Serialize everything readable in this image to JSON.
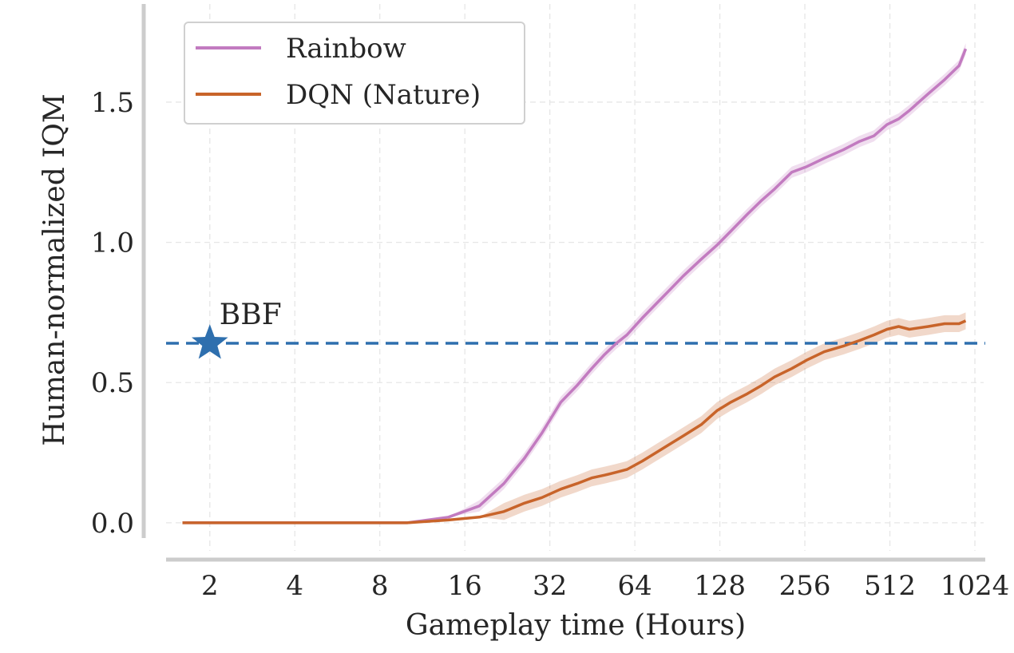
{
  "chart_data": {
    "type": "line",
    "title": "",
    "xlabel": "Gameplay time (Hours)",
    "ylabel": "Human-normalized IQM",
    "x_scale": "log2",
    "x_ticks": [
      2,
      4,
      8,
      16,
      32,
      64,
      128,
      256,
      512,
      1024
    ],
    "x_tick_labels": [
      "2",
      "4",
      "8",
      "16",
      "32",
      "64",
      "128",
      "256",
      "512",
      "1024"
    ],
    "y_ticks": [
      0.0,
      0.5,
      1.0,
      1.5
    ],
    "y_tick_labels": [
      "0.0",
      "0.5",
      "1.0",
      "1.5"
    ],
    "xlim": [
      1.4,
      1100
    ],
    "ylim": [
      -0.1,
      1.85
    ],
    "grid": true,
    "legend_position": "top-left",
    "series": [
      {
        "name": "Rainbow",
        "color": "#c27bc0",
        "x": [
          1.6,
          3,
          6,
          10,
          14,
          18,
          22,
          26,
          30,
          35,
          40,
          45,
          50,
          55,
          60,
          68,
          76,
          85,
          95,
          110,
          125,
          140,
          160,
          180,
          200,
          230,
          260,
          300,
          350,
          400,
          450,
          500,
          550,
          600,
          700,
          800,
          900,
          950
        ],
        "y": [
          0.0,
          0.0,
          0.0,
          0.0,
          0.02,
          0.06,
          0.14,
          0.23,
          0.32,
          0.43,
          0.49,
          0.55,
          0.6,
          0.64,
          0.67,
          0.73,
          0.78,
          0.83,
          0.88,
          0.94,
          0.99,
          1.04,
          1.1,
          1.15,
          1.19,
          1.25,
          1.27,
          1.3,
          1.33,
          1.36,
          1.38,
          1.42,
          1.44,
          1.47,
          1.53,
          1.58,
          1.63,
          1.69
        ],
        "band": 0.02
      },
      {
        "name": "DQN (Nature)",
        "color": "#c8642a",
        "x": [
          1.6,
          3,
          6,
          10,
          14,
          18,
          22,
          26,
          30,
          35,
          40,
          45,
          50,
          55,
          60,
          68,
          76,
          85,
          95,
          110,
          125,
          140,
          160,
          180,
          200,
          230,
          260,
          300,
          350,
          400,
          450,
          500,
          550,
          600,
          700,
          800,
          900,
          950
        ],
        "y": [
          0.0,
          0.0,
          0.0,
          0.0,
          0.01,
          0.02,
          0.04,
          0.07,
          0.09,
          0.12,
          0.14,
          0.16,
          0.17,
          0.18,
          0.19,
          0.22,
          0.25,
          0.28,
          0.31,
          0.35,
          0.4,
          0.43,
          0.46,
          0.49,
          0.52,
          0.55,
          0.58,
          0.61,
          0.63,
          0.65,
          0.67,
          0.69,
          0.7,
          0.69,
          0.7,
          0.71,
          0.71,
          0.72
        ],
        "band": 0.03
      }
    ],
    "reference_line": {
      "y": 0.64,
      "color": "#2e6fae",
      "style": "dashed"
    },
    "annotations": [
      {
        "text": "BBF",
        "x": 2,
        "y": 0.64,
        "marker": "star",
        "color": "#2e6fae"
      }
    ]
  }
}
